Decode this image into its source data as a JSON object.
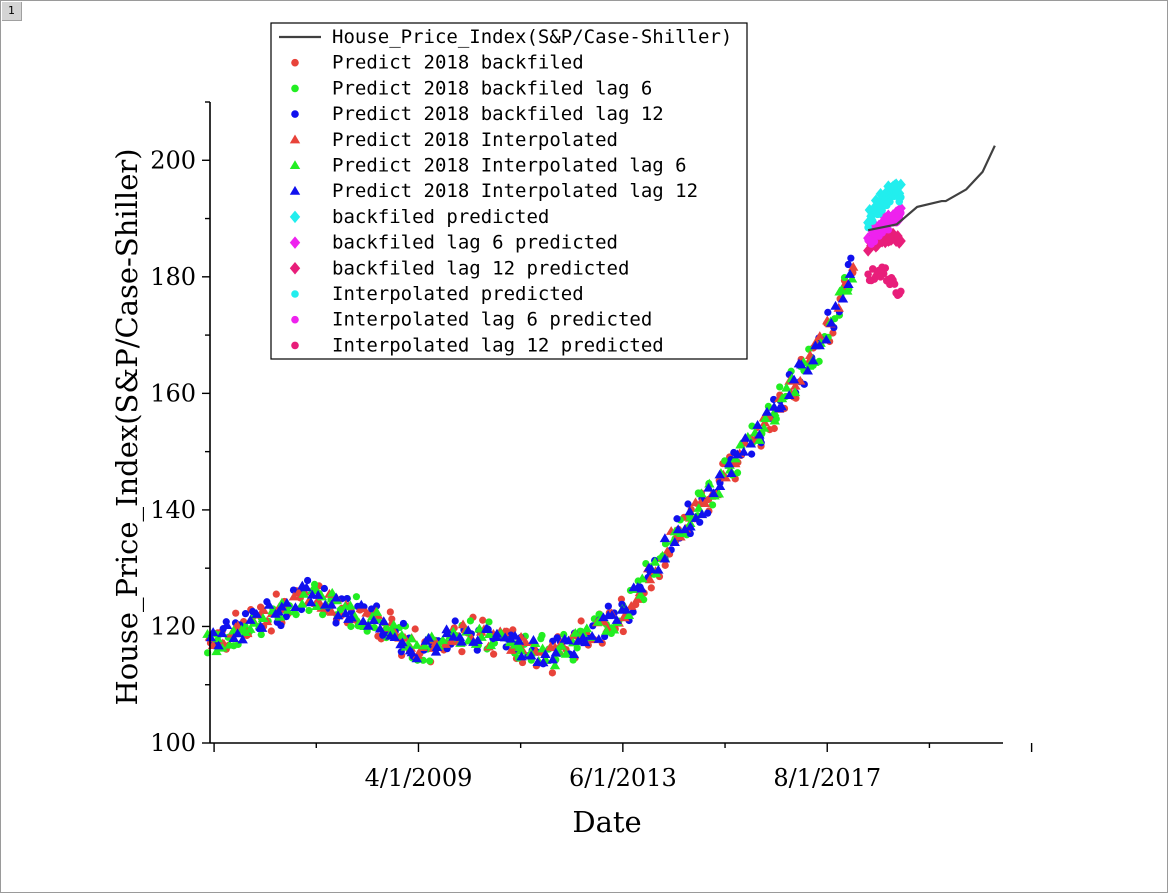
{
  "page_tab": "1",
  "chart_data": {
    "type": "scatter",
    "xlabel": "Date",
    "ylabel": "House_Price_Index(S&P/Case-Shiller)",
    "x_ticklabels": [
      "4/1/2009",
      "6/1/2013",
      "8/1/2017"
    ],
    "xlim": [
      "2005-01",
      "2021-03"
    ],
    "ylim": [
      100,
      210
    ],
    "y_ticks": [
      100,
      120,
      140,
      160,
      180,
      200
    ],
    "grid": false,
    "legend_position": "top-left",
    "colors": {
      "line": "#404040",
      "red": "#e8433a",
      "green": "#22ee22",
      "blue": "#1010ee",
      "cyan": "#22eeee",
      "magenta": "#ee22ee",
      "pink": "#e81e7a"
    },
    "legend": [
      "House_Price_Index(S&P/Case-Shiller)",
      "Predict 2018 backfiled",
      "Predict 2018 backfiled lag 6",
      "Predict 2018 backfiled lag 12",
      "Predict 2018 Interpolated",
      "Predict 2018 Interpolated lag 6",
      "Predict 2018 Interpolated lag 12",
      "backfiled predicted",
      "backfiled lag 6 predicted",
      "backfiled lag 12 predicted",
      "Interpolated  predicted",
      "Interpolated  lag 6 predicted",
      "Interpolated  lag 12 predicted"
    ],
    "actual_trend": {
      "x": [
        "2005-01",
        "2006-01",
        "2007-01",
        "2007-06",
        "2008-06",
        "2009-04",
        "2010-01",
        "2011-01",
        "2012-01",
        "2013-06",
        "2014-06",
        "2015-06",
        "2016-06",
        "2017-06",
        "2018-01",
        "2018-06"
      ],
      "y": [
        117,
        121,
        125.5,
        124,
        121,
        116,
        119,
        117.5,
        115,
        122,
        135,
        145,
        156,
        168,
        179,
        188.5
      ]
    },
    "extension_line": {
      "x": [
        "2018-06",
        "2019-01",
        "2019-06",
        "2019-12",
        "2020-01",
        "2020-06",
        "2020-10",
        "2021-01"
      ],
      "y": [
        188,
        189,
        192,
        193,
        193,
        195,
        198,
        202.5
      ]
    },
    "forecast_clusters": [
      {
        "series": "backfiled predicted",
        "x": [
          "2018-06",
          "2018-10",
          "2019-02"
        ],
        "y": [
          190,
          194,
          195.5
        ]
      },
      {
        "series": "backfiled lag 6 predicted",
        "x": [
          "2018-06",
          "2018-10",
          "2019-02"
        ],
        "y": [
          187,
          189.5,
          191
        ]
      },
      {
        "series": "backfiled lag 12 predicted",
        "x": [
          "2018-06",
          "2018-10",
          "2019-02"
        ],
        "y": [
          185,
          187,
          186
        ]
      },
      {
        "series": "Interpolated  predicted",
        "x": [
          "2018-06",
          "2018-10",
          "2019-02"
        ],
        "y": [
          189,
          193,
          194
        ]
      },
      {
        "series": "Interpolated  lag 6 predicted",
        "x": [
          "2018-06",
          "2018-10",
          "2019-02"
        ],
        "y": [
          186,
          189,
          190
        ]
      },
      {
        "series": "Interpolated  lag 12 predicted",
        "x": [
          "2018-06",
          "2018-10",
          "2019-02"
        ],
        "y": [
          180,
          181,
          176.5
        ]
      }
    ]
  }
}
